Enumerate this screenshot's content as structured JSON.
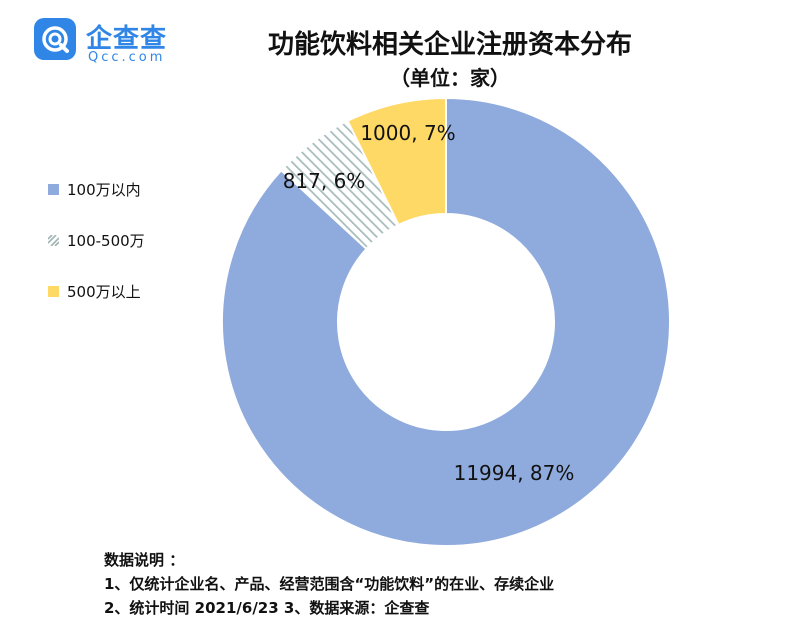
{
  "logo": {
    "cn": "企查查",
    "en": "Qcc.com",
    "icon": "qcc-logo-icon",
    "color": "#2f86e6"
  },
  "chart_data": {
    "type": "pie",
    "title": "功能饮料相关企业注册资本分布",
    "subtitle": "（单位：家）",
    "legend_position": "left",
    "series": [
      {
        "name": "100万以内",
        "value": 11994,
        "percent": "87%",
        "label": "11994, 87%",
        "color": "#8faadc",
        "pattern": "solid"
      },
      {
        "name": "100-500万",
        "value": 817,
        "percent": "6%",
        "label": "817, 6%",
        "color": "#bfcfcf",
        "pattern": "diagonal-hatch"
      },
      {
        "name": "500万以上",
        "value": 1000,
        "percent": "7%",
        "label": "1000, 7%",
        "color": "#ffd966",
        "pattern": "solid"
      }
    ]
  },
  "notes": {
    "heading": "数据说明 ：",
    "line1": "1、仅统计企业名、产品、经营范围含“功能饮料”的在业、存续企业",
    "line2": "2、统计时间 2021/6/23    3、数据来源：企查查"
  }
}
